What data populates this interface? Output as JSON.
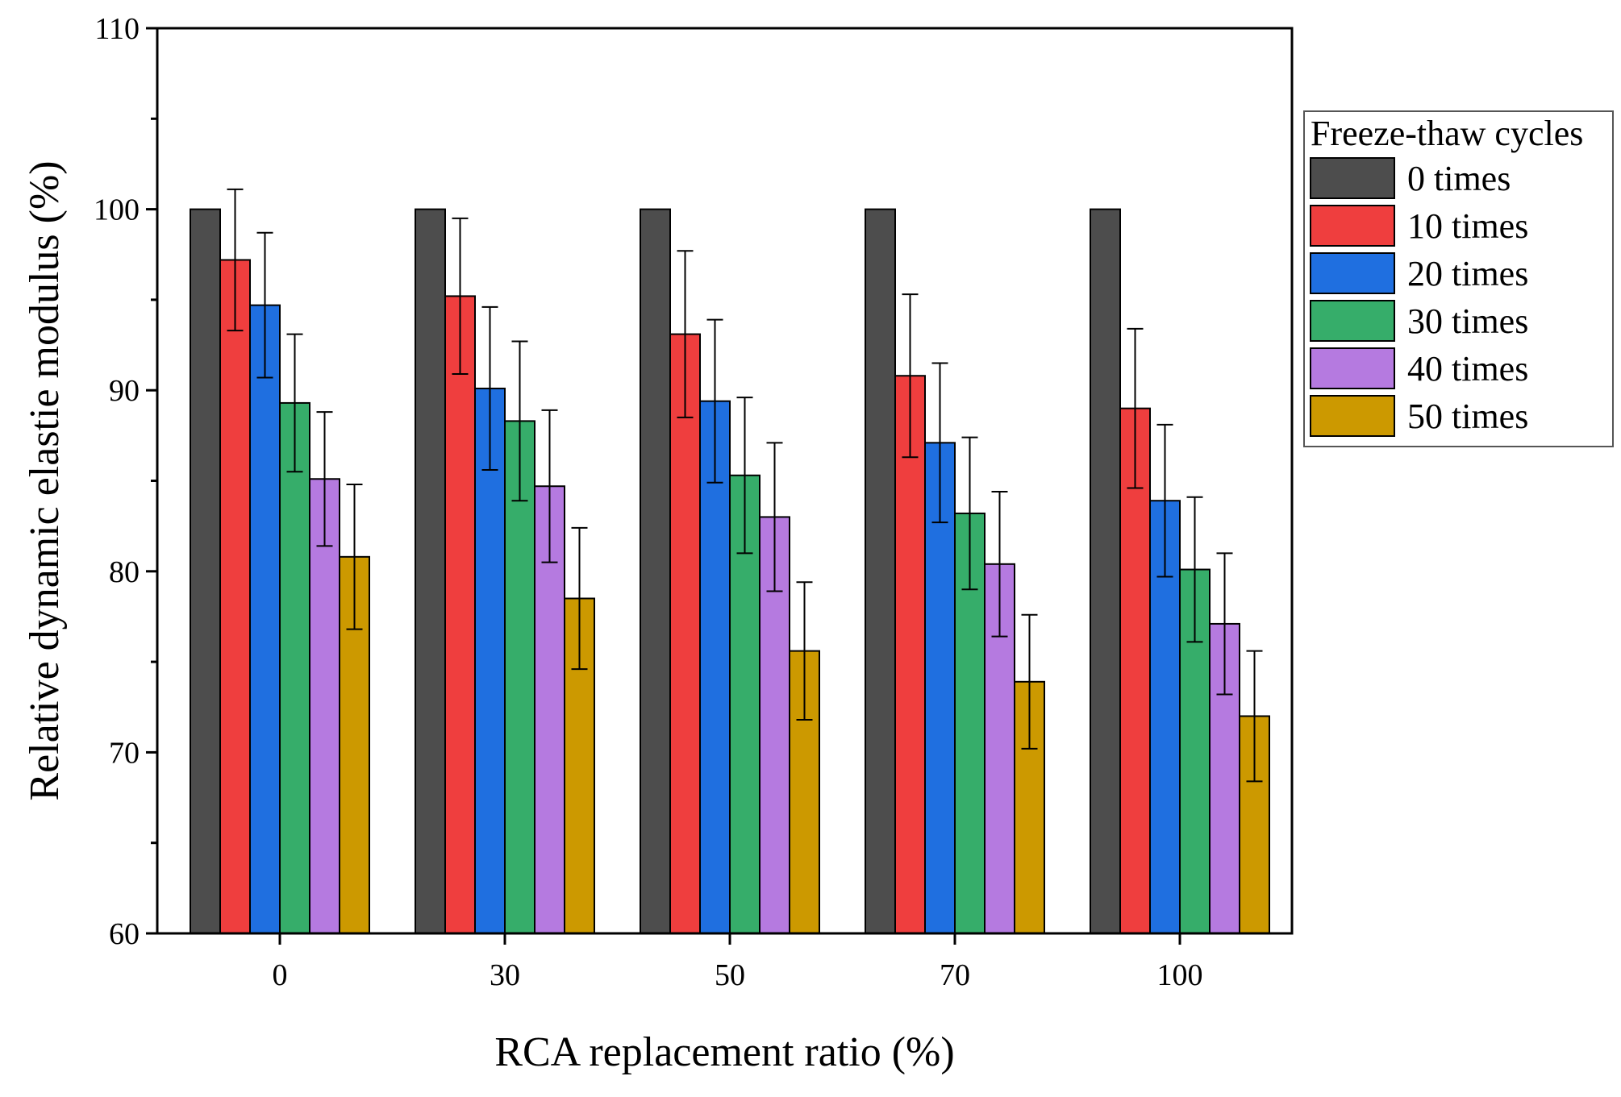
{
  "chart_data": {
    "type": "bar",
    "title": "",
    "xlabel": "RCA replacement ratio (%)",
    "ylabel": "Relative dynamic elastie modulus (%)",
    "ylim": [
      60,
      110
    ],
    "yticks": [
      60,
      70,
      80,
      90,
      100,
      110
    ],
    "grid": false,
    "legend": {
      "title": "Freeze-thaw cycles",
      "placement": "right, outside plot, upper"
    },
    "categories": [
      "0",
      "30",
      "50",
      "70",
      "100"
    ],
    "series": [
      {
        "name": "0 times",
        "color": "#4d4d4d",
        "values": [
          100,
          100,
          100,
          100,
          100
        ],
        "errors": [
          0,
          0,
          0,
          0,
          0
        ]
      },
      {
        "name": "10 times",
        "color": "#ef3e3e",
        "values": [
          97.2,
          95.2,
          93.1,
          90.8,
          89.0
        ],
        "errors": [
          3.9,
          4.3,
          4.6,
          4.5,
          4.4
        ]
      },
      {
        "name": "20 times",
        "color": "#1f6fe0",
        "values": [
          94.7,
          90.1,
          89.4,
          87.1,
          83.9
        ],
        "errors": [
          4.0,
          4.5,
          4.5,
          4.4,
          4.2
        ]
      },
      {
        "name": "30 times",
        "color": "#36ad6a",
        "values": [
          89.3,
          88.3,
          85.3,
          83.2,
          80.1
        ],
        "errors": [
          3.8,
          4.4,
          4.3,
          4.2,
          4.0
        ]
      },
      {
        "name": "40 times",
        "color": "#b57ae0",
        "values": [
          85.1,
          84.7,
          83.0,
          80.4,
          77.1
        ],
        "errors": [
          3.7,
          4.2,
          4.1,
          4.0,
          3.9
        ]
      },
      {
        "name": "50 times",
        "color": "#cc9900",
        "values": [
          80.8,
          78.5,
          75.6,
          73.9,
          72.0
        ],
        "errors": [
          4.0,
          3.9,
          3.8,
          3.7,
          3.6
        ]
      }
    ]
  }
}
